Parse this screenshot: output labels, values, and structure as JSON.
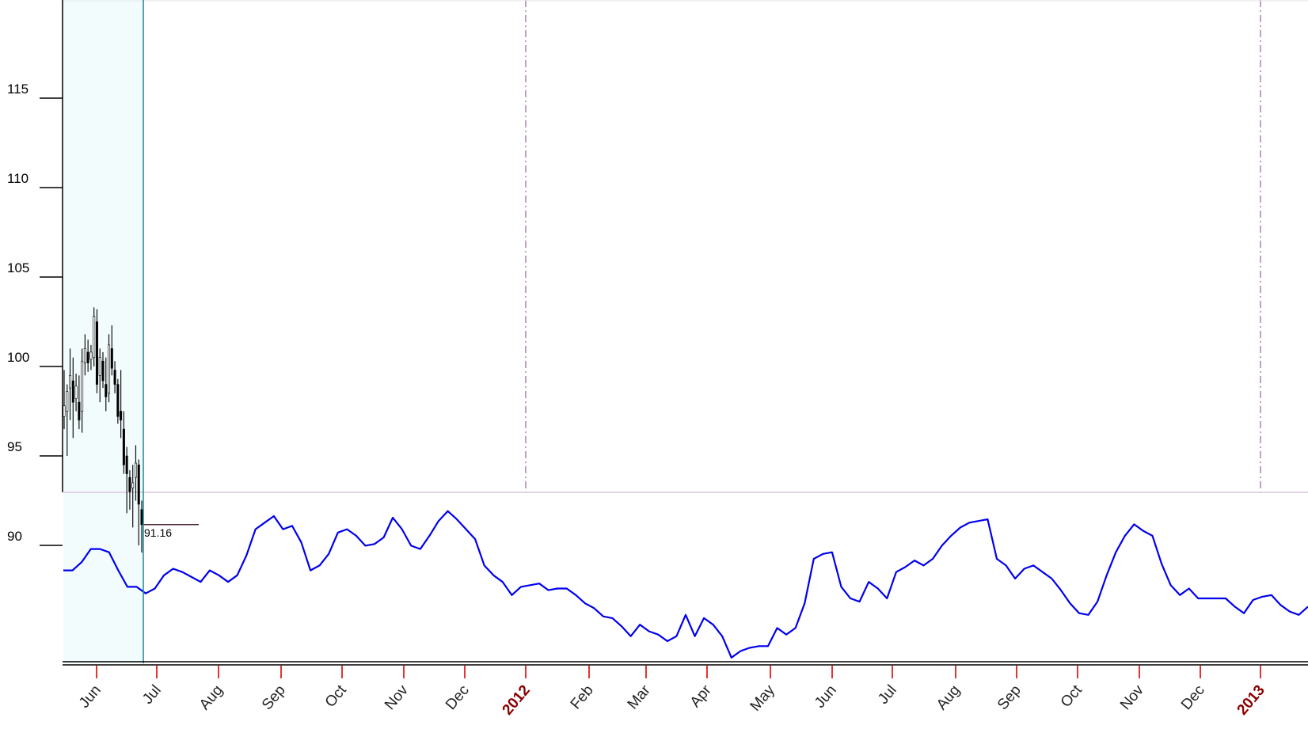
{
  "chart_data": [
    {
      "type": "candlestick",
      "title": "",
      "ylabel": "",
      "ylim": [
        89,
        116
      ],
      "yticks": [
        "115",
        "110",
        "105",
        "100",
        "95",
        "90"
      ],
      "last_price_label": "91.16",
      "last_price": 91.16,
      "ohlc": [
        {
          "o": 97.2,
          "h": 99.8,
          "l": 96.5,
          "c": 97.8
        },
        {
          "o": 97.5,
          "h": 99.0,
          "l": 95.0,
          "c": 98.6
        },
        {
          "o": 98.8,
          "h": 101.0,
          "l": 97.0,
          "c": 99.5
        },
        {
          "o": 99.2,
          "h": 100.5,
          "l": 96.0,
          "c": 98.0
        },
        {
          "o": 98.2,
          "h": 99.6,
          "l": 97.5,
          "c": 98.9
        },
        {
          "o": 98.0,
          "h": 99.5,
          "l": 96.5,
          "c": 97.0
        },
        {
          "o": 97.5,
          "h": 101.0,
          "l": 96.3,
          "c": 100.3
        },
        {
          "o": 100.2,
          "h": 101.8,
          "l": 99.5,
          "c": 101.0
        },
        {
          "o": 100.8,
          "h": 101.5,
          "l": 99.7,
          "c": 100.2
        },
        {
          "o": 100.4,
          "h": 101.2,
          "l": 99.8,
          "c": 100.8
        },
        {
          "o": 100.5,
          "h": 103.3,
          "l": 100.0,
          "c": 102.8
        },
        {
          "o": 102.5,
          "h": 103.2,
          "l": 98.5,
          "c": 99.0
        },
        {
          "o": 99.5,
          "h": 101.0,
          "l": 98.0,
          "c": 100.5
        },
        {
          "o": 100.3,
          "h": 100.8,
          "l": 98.8,
          "c": 99.2
        },
        {
          "o": 99.0,
          "h": 100.5,
          "l": 97.5,
          "c": 98.3
        },
        {
          "o": 98.5,
          "h": 101.8,
          "l": 98.0,
          "c": 101.2
        },
        {
          "o": 101.0,
          "h": 102.3,
          "l": 99.5,
          "c": 99.9
        },
        {
          "o": 99.8,
          "h": 100.3,
          "l": 98.5,
          "c": 99.0
        },
        {
          "o": 99.0,
          "h": 99.3,
          "l": 96.8,
          "c": 97.2
        },
        {
          "o": 97.5,
          "h": 99.8,
          "l": 96.0,
          "c": 97.0
        },
        {
          "o": 96.5,
          "h": 97.5,
          "l": 94.0,
          "c": 94.5
        },
        {
          "o": 95.0,
          "h": 95.5,
          "l": 91.8,
          "c": 94.0
        },
        {
          "o": 93.8,
          "h": 94.2,
          "l": 92.0,
          "c": 93.0
        },
        {
          "o": 93.2,
          "h": 94.5,
          "l": 91.0,
          "c": 93.5
        },
        {
          "o": 93.8,
          "h": 95.6,
          "l": 92.5,
          "c": 94.6
        },
        {
          "o": 94.5,
          "h": 94.8,
          "l": 90.0,
          "c": 92.3
        },
        {
          "o": 92.0,
          "h": 92.5,
          "l": 89.6,
          "c": 91.16
        }
      ]
    },
    {
      "type": "line",
      "title": "",
      "series": [
        {
          "color": "#0000ee",
          "values": [
            0.55,
            0.55,
            0.6,
            0.68,
            0.68,
            0.66,
            0.55,
            0.45,
            0.45,
            0.41,
            0.44,
            0.52,
            0.56,
            0.54,
            0.51,
            0.48,
            0.55,
            0.52,
            0.48,
            0.52,
            0.64,
            0.8,
            0.84,
            0.88,
            0.8,
            0.82,
            0.72,
            0.55,
            0.58,
            0.65,
            0.78,
            0.8,
            0.76,
            0.7,
            0.71,
            0.75,
            0.87,
            0.8,
            0.7,
            0.68,
            0.76,
            0.85,
            0.91,
            0.86,
            0.8,
            0.74,
            0.58,
            0.52,
            0.48,
            0.4,
            0.45,
            0.46,
            0.47,
            0.43,
            0.44,
            0.44,
            0.4,
            0.35,
            0.32,
            0.27,
            0.26,
            0.21,
            0.15,
            0.22,
            0.18,
            0.16,
            0.12,
            0.15,
            0.28,
            0.15,
            0.26,
            0.22,
            0.15,
            0.02,
            0.06,
            0.08,
            0.09,
            0.09,
            0.2,
            0.16,
            0.2,
            0.35,
            0.62,
            0.65,
            0.66,
            0.45,
            0.38,
            0.36,
            0.48,
            0.44,
            0.38,
            0.54,
            0.57,
            0.61,
            0.58,
            0.62,
            0.7,
            0.76,
            0.81,
            0.84,
            0.85,
            0.86,
            0.62,
            0.58,
            0.5,
            0.56,
            0.58,
            0.54,
            0.5,
            0.43,
            0.35,
            0.29,
            0.28,
            0.36,
            0.52,
            0.66,
            0.76,
            0.83,
            0.79,
            0.76,
            0.59,
            0.46,
            0.4,
            0.44,
            0.38,
            0.38,
            0.38,
            0.38,
            0.33,
            0.29,
            0.37,
            0.39,
            0.4,
            0.34,
            0.3,
            0.28,
            0.33
          ]
        }
      ]
    }
  ],
  "x_axis": {
    "months": [
      "Jun",
      "Jul",
      "Aug",
      "Sep",
      "Oct",
      "Nov",
      "Dec",
      "2012",
      "Feb",
      "Mar",
      "Apr",
      "May",
      "Jun",
      "Jul",
      "Aug",
      "Sep",
      "Oct",
      "Nov",
      "Dec",
      "2013"
    ],
    "year_labels": [
      "2012",
      "2013"
    ]
  },
  "colors": {
    "highlight_band": "#f2fcfd",
    "cursor_line": "#1a8a96",
    "year_divider": "#b08bb0",
    "indicator_line": "#0000ee",
    "tick_red": "#dd0000",
    "year_label": "#8b0000"
  }
}
